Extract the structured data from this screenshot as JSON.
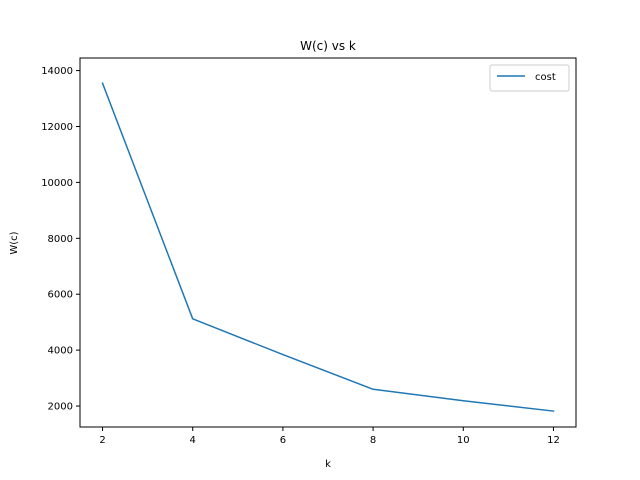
{
  "chart_data": {
    "type": "line",
    "title": "W(c) vs k",
    "xlabel": "k",
    "ylabel": "W(c)",
    "xlim": [
      1.5,
      12.5
    ],
    "ylim": [
      1250,
      14450
    ],
    "xticks": [
      2,
      4,
      6,
      8,
      10,
      12
    ],
    "yticks": [
      2000,
      4000,
      6000,
      8000,
      10000,
      12000,
      14000
    ],
    "grid": false,
    "legend_position": "top-right",
    "series": [
      {
        "name": "cost",
        "color": "#1f77b4",
        "x": [
          2,
          4,
          6,
          8,
          10,
          12
        ],
        "y": [
          13550,
          5120,
          3840,
          2600,
          2190,
          1820
        ]
      }
    ]
  }
}
